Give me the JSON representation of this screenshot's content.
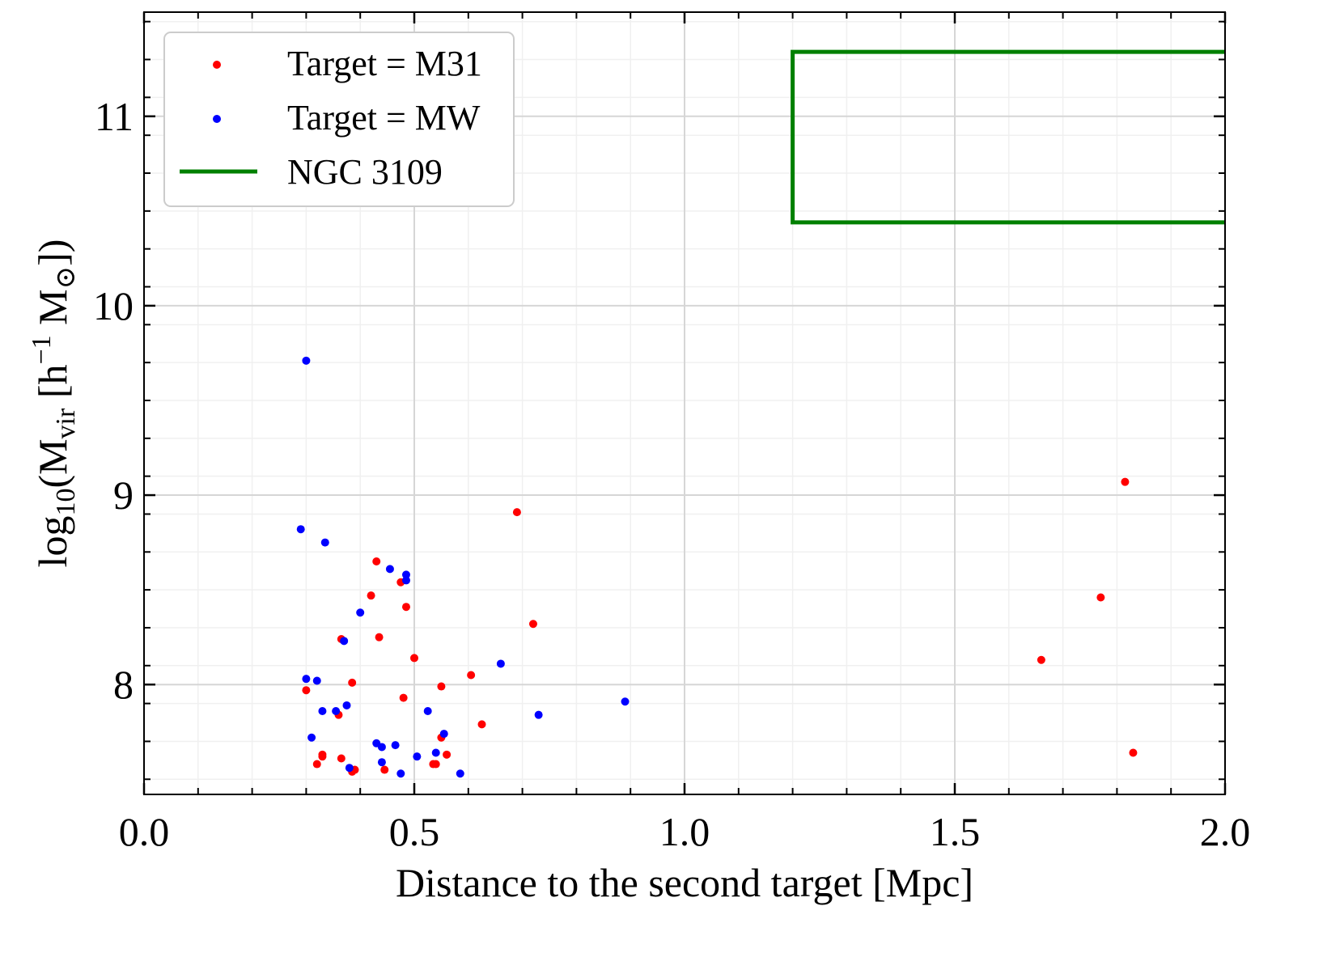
{
  "chart_data": {
    "type": "scatter",
    "title": "",
    "xlabel": "Distance to the second target [Mpc]",
    "ylabel": {
      "base": "log",
      "sub10": "10",
      "open": "(M",
      "subvir": "vir",
      "mid": " [h",
      "sup": "−1",
      "msun": " M",
      "sun": "⊙",
      "close": "])"
    },
    "xlim": [
      0.0,
      2.0
    ],
    "ylim": [
      7.42,
      11.55
    ],
    "xticks": [
      0.0,
      0.5,
      1.0,
      1.5,
      2.0
    ],
    "xtick_labels": [
      "0.0",
      "0.5",
      "1.0",
      "1.5",
      "2.0"
    ],
    "yticks": [
      8,
      9,
      10,
      11
    ],
    "ytick_labels": [
      "8",
      "9",
      "10",
      "11"
    ],
    "grid": true,
    "legend_position": "top-left",
    "colors": {
      "m31": "#ff0000",
      "mw": "#0000ff",
      "ngc": "#008000"
    },
    "series": [
      {
        "name": "Target = M31",
        "color": "#ff0000",
        "points": [
          [
            0.3,
            7.97
          ],
          [
            0.32,
            7.58
          ],
          [
            0.33,
            7.63
          ],
          [
            0.33,
            7.62
          ],
          [
            0.36,
            7.84
          ],
          [
            0.365,
            8.24
          ],
          [
            0.365,
            7.61
          ],
          [
            0.385,
            8.01
          ],
          [
            0.385,
            7.54
          ],
          [
            0.39,
            7.55
          ],
          [
            0.42,
            8.47
          ],
          [
            0.43,
            8.65
          ],
          [
            0.435,
            8.25
          ],
          [
            0.445,
            7.55
          ],
          [
            0.475,
            8.54
          ],
          [
            0.48,
            7.93
          ],
          [
            0.485,
            8.41
          ],
          [
            0.5,
            8.14
          ],
          [
            0.535,
            7.58
          ],
          [
            0.54,
            7.58
          ],
          [
            0.55,
            7.99
          ],
          [
            0.55,
            7.72
          ],
          [
            0.56,
            7.63
          ],
          [
            0.605,
            8.05
          ],
          [
            0.625,
            7.79
          ],
          [
            0.69,
            8.91
          ],
          [
            0.72,
            8.32
          ],
          [
            1.66,
            8.13
          ],
          [
            1.77,
            8.46
          ],
          [
            1.815,
            9.07
          ],
          [
            1.83,
            7.64
          ]
        ]
      },
      {
        "name": "Target = MW",
        "color": "#0000ff",
        "points": [
          [
            0.29,
            8.82
          ],
          [
            0.3,
            9.71
          ],
          [
            0.3,
            8.03
          ],
          [
            0.31,
            7.72
          ],
          [
            0.32,
            8.02
          ],
          [
            0.33,
            7.86
          ],
          [
            0.335,
            8.75
          ],
          [
            0.355,
            7.86
          ],
          [
            0.37,
            8.23
          ],
          [
            0.375,
            7.89
          ],
          [
            0.38,
            7.56
          ],
          [
            0.4,
            8.38
          ],
          [
            0.43,
            7.69
          ],
          [
            0.44,
            7.67
          ],
          [
            0.44,
            7.59
          ],
          [
            0.455,
            8.61
          ],
          [
            0.465,
            7.68
          ],
          [
            0.475,
            7.53
          ],
          [
            0.485,
            8.58
          ],
          [
            0.485,
            8.55
          ],
          [
            0.505,
            7.62
          ],
          [
            0.525,
            7.86
          ],
          [
            0.54,
            7.64
          ],
          [
            0.555,
            7.74
          ],
          [
            0.585,
            7.53
          ],
          [
            0.66,
            8.11
          ],
          [
            0.73,
            7.84
          ],
          [
            0.89,
            7.91
          ]
        ]
      }
    ],
    "annotations": [
      {
        "name": "NGC 3109",
        "kind": "box-outline",
        "color": "#008000",
        "x_range": [
          1.2,
          2.0
        ],
        "y_range": [
          10.44,
          11.34
        ]
      }
    ],
    "legend": {
      "items": [
        {
          "label": "Target = M31",
          "marker": "dot",
          "color": "#ff0000"
        },
        {
          "label": "Target = MW",
          "marker": "dot",
          "color": "#0000ff"
        },
        {
          "label": "NGC 3109",
          "marker": "line",
          "color": "#008000"
        }
      ]
    }
  }
}
